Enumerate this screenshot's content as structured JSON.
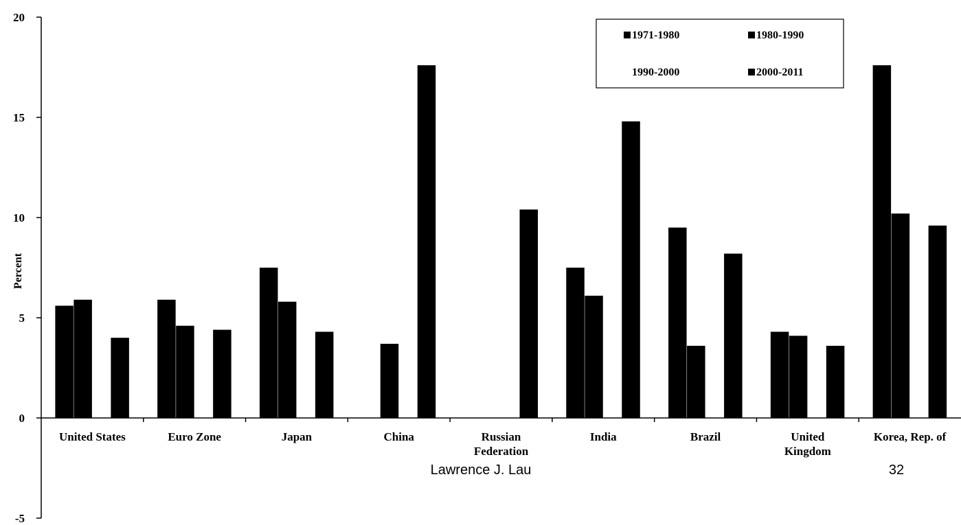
{
  "chart_data": {
    "type": "bar",
    "ylabel": "Percent",
    "xlabel": "",
    "ylim": [
      -5,
      20
    ],
    "yticks": [
      "20",
      "15",
      "10",
      "5",
      "0",
      "-5"
    ],
    "categories": [
      "United States",
      "Euro Zone",
      "Japan",
      "China",
      "Russian Federation",
      "India",
      "Brazil",
      "United Kingdom",
      "Korea, Rep. of"
    ],
    "category_label_lines": [
      [
        "United States"
      ],
      [
        "Euro Zone"
      ],
      [
        "Japan"
      ],
      [
        "China"
      ],
      [
        "Russian",
        "Federation"
      ],
      [
        "India"
      ],
      [
        "Brazil"
      ],
      [
        "United",
        "Kingdom"
      ],
      [
        "Korea, Rep. of"
      ]
    ],
    "series": [
      {
        "name": "1971-1980",
        "color": "#000000",
        "values": [
          5.6,
          5.9,
          7.5,
          null,
          null,
          7.5,
          9.5,
          4.3,
          17.6
        ]
      },
      {
        "name": "1980-1990",
        "color": "#000000",
        "values": [
          5.9,
          4.6,
          5.8,
          3.7,
          null,
          6.1,
          3.6,
          4.1,
          10.2
        ]
      },
      {
        "name": "1990-2000",
        "color": "#ffffff",
        "values": [
          null,
          null,
          null,
          null,
          null,
          null,
          null,
          null,
          null
        ]
      },
      {
        "name": "2000-2011",
        "color": "#000000",
        "values": [
          4.0,
          4.4,
          4.3,
          17.6,
          10.4,
          14.8,
          8.2,
          3.6,
          9.6
        ]
      }
    ],
    "legend_position": "top-right",
    "grid": false
  },
  "footer": {
    "author": "Lawrence J. Lau",
    "page_number": "32"
  }
}
